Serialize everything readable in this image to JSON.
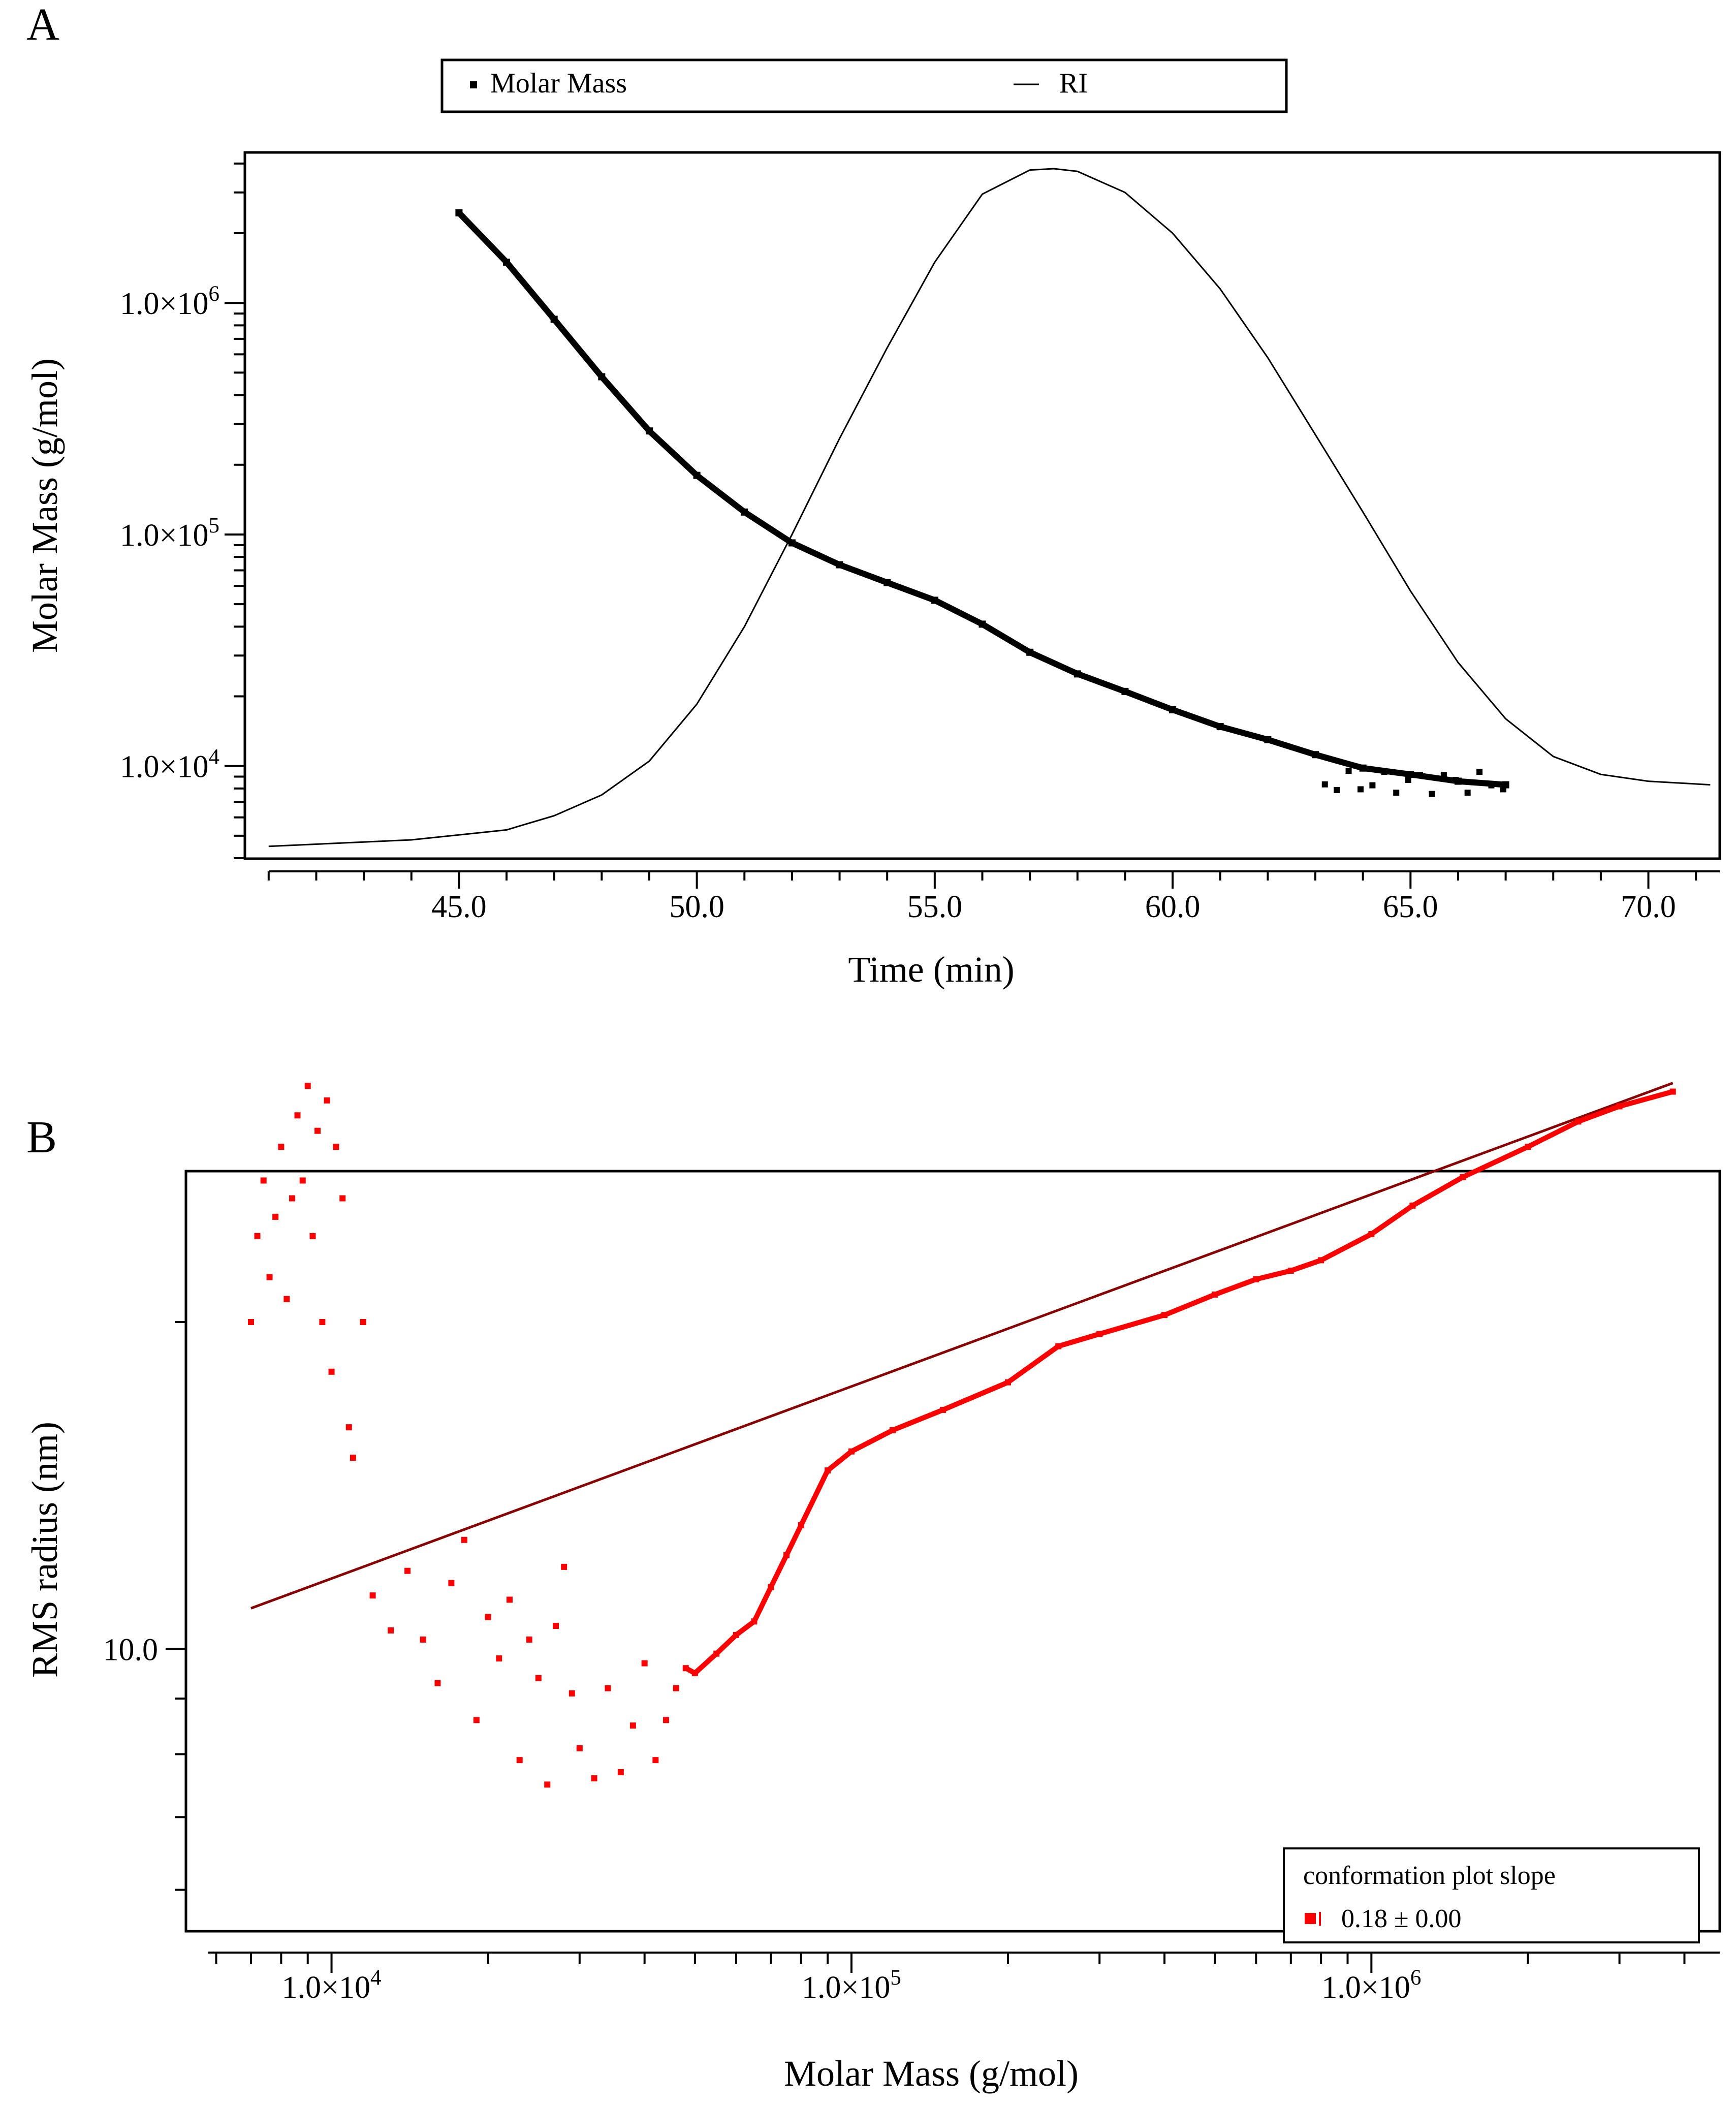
{
  "chart_data": [
    {
      "panel_label": "A",
      "type": "line",
      "xlabel": "Time (min)",
      "ylabel": "Molar Mass (g/mol)",
      "xlim": [
        40.5,
        71.5
      ],
      "ylim_log10": [
        3.6,
        6.65
      ],
      "x_ticks": [
        45,
        50,
        55,
        60,
        65,
        70
      ],
      "x_tick_labels": [
        "45.0",
        "50.0",
        "55.0",
        "60.0",
        "65.0",
        "70.0"
      ],
      "y_tick_labels": [
        {
          "mantissa": "1.0×10",
          "exp": "4",
          "value": 10000
        },
        {
          "mantissa": "1.0×10",
          "exp": "5",
          "value": 100000
        },
        {
          "mantissa": "1.0×10",
          "exp": "6",
          "value": 1000000
        }
      ],
      "legend": [
        "Molar Mass",
        "RI"
      ],
      "series": [
        {
          "name": "Molar Mass",
          "style": "points",
          "x": [
            45.0,
            46.0,
            47.0,
            48.0,
            49.0,
            50.0,
            51.0,
            52.0,
            53.0,
            54.0,
            55.0,
            56.0,
            57.0,
            58.0,
            59.0,
            60.0,
            61.0,
            62.0,
            63.0,
            64.0,
            65.0,
            66.0,
            67.0
          ],
          "y": [
            2450000,
            1500000,
            850000,
            480000,
            280000,
            180000,
            125000,
            92000,
            74000,
            62000,
            52000,
            41000,
            31000,
            25000,
            21000,
            17500,
            14800,
            13000,
            11200,
            9800,
            9200,
            8600,
            8300
          ]
        },
        {
          "name": "RI",
          "style": "line",
          "x": [
            41.0,
            44.0,
            46.0,
            47.0,
            48.0,
            49.0,
            50.0,
            51.0,
            52.0,
            53.0,
            54.0,
            55.0,
            56.0,
            57.0,
            57.5,
            58.0,
            59.0,
            60.0,
            61.0,
            62.0,
            63.0,
            64.0,
            65.0,
            66.0,
            67.0,
            68.0,
            69.0,
            70.0,
            71.3
          ],
          "y": [
            4500,
            4800,
            5300,
            6100,
            7500,
            10500,
            18500,
            40000,
            100000,
            260000,
            640000,
            1500000,
            2950000,
            3750000,
            3800000,
            3700000,
            3000000,
            2000000,
            1150000,
            580000,
            270000,
            125000,
            57000,
            28000,
            16000,
            11000,
            9200,
            8600,
            8300
          ]
        }
      ]
    },
    {
      "panel_label": "B",
      "type": "scatter",
      "xlabel": "Molar Mass (g/mol)",
      "ylabel": "RMS radius (nm)",
      "xlim_log10": [
        3.72,
        6.67
      ],
      "ylim_log10": [
        0.74,
        1.44
      ],
      "x_tick_labels": [
        {
          "mantissa": "1.0×10",
          "exp": "4",
          "value": 10000
        },
        {
          "mantissa": "1.0×10",
          "exp": "5",
          "value": 100000
        },
        {
          "mantissa": "1.0×10",
          "exp": "6",
          "value": 1000000
        }
      ],
      "y_tick_labels": [
        {
          "label": "10.0",
          "value": 10
        }
      ],
      "legend": {
        "title": "conformation plot slope",
        "entry": "0.18 ± 0.00"
      },
      "fit_line": {
        "x": [
          7000,
          3800000
        ],
        "y": [
          10.9,
          33.2
        ],
        "slope": 0.18
      },
      "series": [
        {
          "name": "RMS radius",
          "points": [
            [
              7000,
              20
            ],
            [
              7200,
              24
            ],
            [
              7400,
              27
            ],
            [
              7600,
              22
            ],
            [
              7800,
              25
            ],
            [
              8000,
              29
            ],
            [
              8200,
              21
            ],
            [
              8400,
              26
            ],
            [
              8600,
              31
            ],
            [
              8800,
              27
            ],
            [
              9000,
              33
            ],
            [
              9200,
              24
            ],
            [
              9400,
              30
            ],
            [
              9600,
              20
            ],
            [
              9800,
              32
            ],
            [
              10000,
              18
            ],
            [
              10200,
              29
            ],
            [
              10500,
              26
            ],
            [
              10800,
              16
            ],
            [
              11000,
              15
            ],
            [
              11500,
              20
            ],
            [
              12000,
              11.2
            ],
            [
              13000,
              10.4
            ],
            [
              14000,
              11.8
            ],
            [
              15000,
              10.2
            ],
            [
              16000,
              9.3
            ],
            [
              17000,
              11.5
            ],
            [
              18000,
              12.6
            ],
            [
              19000,
              8.6
            ],
            [
              20000,
              10.7
            ],
            [
              21000,
              9.8
            ],
            [
              22000,
              11.1
            ],
            [
              23000,
              7.9
            ],
            [
              24000,
              10.2
            ],
            [
              25000,
              9.4
            ],
            [
              26000,
              7.5
            ],
            [
              27000,
              10.5
            ],
            [
              28000,
              11.9
            ],
            [
              29000,
              9.1
            ],
            [
              30000,
              8.1
            ],
            [
              32000,
              7.6
            ],
            [
              34000,
              9.2
            ],
            [
              36000,
              7.7
            ],
            [
              38000,
              8.5
            ],
            [
              40000,
              9.7
            ],
            [
              42000,
              7.9
            ],
            [
              44000,
              8.6
            ],
            [
              46000,
              9.2
            ],
            [
              48000,
              9.6
            ],
            [
              50000,
              9.5
            ],
            [
              55000,
              9.9
            ],
            [
              60000,
              10.3
            ],
            [
              65000,
              10.6
            ],
            [
              70000,
              11.4
            ],
            [
              75000,
              12.2
            ],
            [
              80000,
              13.0
            ],
            [
              90000,
              14.6
            ],
            [
              100000,
              15.2
            ],
            [
              120000,
              15.9
            ],
            [
              150000,
              16.6
            ],
            [
              200000,
              17.6
            ],
            [
              250000,
              19.0
            ],
            [
              300000,
              19.5
            ],
            [
              400000,
              20.3
            ],
            [
              500000,
              21.2
            ],
            [
              600000,
              21.9
            ],
            [
              700000,
              22.3
            ],
            [
              800000,
              22.8
            ],
            [
              1000000,
              24.1
            ],
            [
              1200000,
              25.6
            ],
            [
              1500000,
              27.2
            ],
            [
              2000000,
              29.0
            ],
            [
              2500000,
              30.6
            ],
            [
              3000000,
              31.6
            ],
            [
              3800000,
              32.6
            ]
          ]
        }
      ]
    }
  ],
  "colors": {
    "axis": "#000000",
    "molar_mass": "#000000",
    "ri": "#000000",
    "scatter": "#ff0000",
    "fit_line": "#8b0000",
    "background": "#ffffff"
  }
}
